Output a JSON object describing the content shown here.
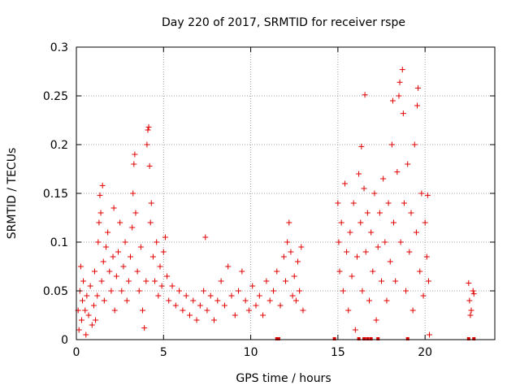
{
  "chart_data": {
    "type": "scatter",
    "title": "Day 220 of 2017, SRMTID for receiver rspe",
    "xlabel": "GPS time / hours",
    "ylabel": "SRMTID / TECUs",
    "xlim": [
      0,
      24
    ],
    "ylim": [
      0,
      0.3
    ],
    "x_ticks": [
      0,
      5,
      10,
      15,
      20
    ],
    "y_ticks": [
      0,
      0.05,
      0.1,
      0.15,
      0.2,
      0.25,
      0.3
    ],
    "x_tick_labels": [
      "0",
      "5",
      "10",
      "15",
      "20"
    ],
    "y_tick_labels": [
      "0",
      "0.05",
      "0.1",
      "0.15",
      "0.2",
      "0.25",
      "0.3"
    ],
    "grid": true,
    "marker": "+",
    "color": "#e00000",
    "series": [
      {
        "name": "SRMTID",
        "note": "Dense point cloud between 0–13 h and 15–20.3 h; scattered points near 22.5–22.8 h. Representative subset of points read from the figure.",
        "points": [
          [
            0.1,
            0.03
          ],
          [
            0.15,
            0.01
          ],
          [
            0.2,
            0.05
          ],
          [
            0.25,
            0.075
          ],
          [
            0.3,
            0.02
          ],
          [
            0.35,
            0.04
          ],
          [
            0.4,
            0.06
          ],
          [
            0.5,
            0.03
          ],
          [
            0.55,
            0.005
          ],
          [
            0.6,
            0.045
          ],
          [
            0.7,
            0.025
          ],
          [
            0.8,
            0.055
          ],
          [
            0.9,
            0.015
          ],
          [
            1.0,
            0.035
          ],
          [
            1.05,
            0.07
          ],
          [
            1.1,
            0.02
          ],
          [
            1.2,
            0.045
          ],
          [
            1.25,
            0.1
          ],
          [
            1.3,
            0.12
          ],
          [
            1.35,
            0.148
          ],
          [
            1.4,
            0.13
          ],
          [
            1.45,
            0.06
          ],
          [
            1.5,
            0.158
          ],
          [
            1.55,
            0.08
          ],
          [
            1.6,
            0.04
          ],
          [
            1.7,
            0.095
          ],
          [
            1.8,
            0.11
          ],
          [
            1.9,
            0.07
          ],
          [
            2.0,
            0.05
          ],
          [
            2.1,
            0.085
          ],
          [
            2.15,
            0.135
          ],
          [
            2.2,
            0.03
          ],
          [
            2.3,
            0.065
          ],
          [
            2.4,
            0.09
          ],
          [
            2.5,
            0.12
          ],
          [
            2.6,
            0.05
          ],
          [
            2.7,
            0.075
          ],
          [
            2.8,
            0.1
          ],
          [
            2.9,
            0.04
          ],
          [
            3.0,
            0.06
          ],
          [
            3.1,
            0.085
          ],
          [
            3.2,
            0.115
          ],
          [
            3.25,
            0.15
          ],
          [
            3.3,
            0.18
          ],
          [
            3.35,
            0.19
          ],
          [
            3.4,
            0.13
          ],
          [
            3.5,
            0.07
          ],
          [
            3.6,
            0.05
          ],
          [
            3.7,
            0.095
          ],
          [
            3.8,
            0.03
          ],
          [
            3.9,
            0.012
          ],
          [
            4.0,
            0.06
          ],
          [
            4.05,
            0.2
          ],
          [
            4.1,
            0.215
          ],
          [
            4.15,
            0.218
          ],
          [
            4.2,
            0.178
          ],
          [
            4.25,
            0.12
          ],
          [
            4.3,
            0.14
          ],
          [
            4.4,
            0.085
          ],
          [
            4.5,
            0.06
          ],
          [
            4.6,
            0.1
          ],
          [
            4.7,
            0.045
          ],
          [
            4.8,
            0.075
          ],
          [
            4.9,
            0.055
          ],
          [
            5.0,
            0.09
          ],
          [
            5.1,
            0.105
          ],
          [
            5.2,
            0.065
          ],
          [
            5.3,
            0.04
          ],
          [
            5.5,
            0.055
          ],
          [
            5.7,
            0.035
          ],
          [
            5.9,
            0.05
          ],
          [
            6.1,
            0.03
          ],
          [
            6.3,
            0.045
          ],
          [
            6.5,
            0.025
          ],
          [
            6.7,
            0.04
          ],
          [
            6.9,
            0.02
          ],
          [
            7.1,
            0.035
          ],
          [
            7.3,
            0.05
          ],
          [
            7.4,
            0.105
          ],
          [
            7.5,
            0.03
          ],
          [
            7.7,
            0.045
          ],
          [
            7.9,
            0.02
          ],
          [
            8.1,
            0.04
          ],
          [
            8.3,
            0.06
          ],
          [
            8.5,
            0.035
          ],
          [
            8.7,
            0.075
          ],
          [
            8.9,
            0.045
          ],
          [
            9.1,
            0.025
          ],
          [
            9.3,
            0.05
          ],
          [
            9.5,
            0.07
          ],
          [
            9.7,
            0.04
          ],
          [
            9.9,
            0.03
          ],
          [
            10.1,
            0.055
          ],
          [
            10.3,
            0.035
          ],
          [
            10.5,
            0.045
          ],
          [
            10.7,
            0.025
          ],
          [
            10.9,
            0.06
          ],
          [
            11.1,
            0.04
          ],
          [
            11.3,
            0.05
          ],
          [
            11.5,
            0.07
          ],
          [
            11.7,
            0.035
          ],
          [
            11.9,
            0.085
          ],
          [
            12.0,
            0.06
          ],
          [
            12.1,
            0.1
          ],
          [
            12.2,
            0.12
          ],
          [
            12.3,
            0.09
          ],
          [
            12.4,
            0.045
          ],
          [
            12.5,
            0.065
          ],
          [
            12.6,
            0.04
          ],
          [
            12.7,
            0.08
          ],
          [
            12.8,
            0.05
          ],
          [
            12.9,
            0.095
          ],
          [
            13.0,
            0.03
          ],
          [
            15.0,
            0.14
          ],
          [
            15.05,
            0.1
          ],
          [
            15.1,
            0.07
          ],
          [
            15.2,
            0.12
          ],
          [
            15.3,
            0.05
          ],
          [
            15.4,
            0.16
          ],
          [
            15.5,
            0.09
          ],
          [
            15.6,
            0.03
          ],
          [
            15.7,
            0.11
          ],
          [
            15.8,
            0.065
          ],
          [
            15.9,
            0.14
          ],
          [
            16.0,
            0.01
          ],
          [
            16.1,
            0.085
          ],
          [
            16.2,
            0.17
          ],
          [
            16.3,
            0.12
          ],
          [
            16.35,
            0.198
          ],
          [
            16.4,
            0.05
          ],
          [
            16.5,
            0.155
          ],
          [
            16.55,
            0.251
          ],
          [
            16.6,
            0.09
          ],
          [
            16.7,
            0.13
          ],
          [
            16.8,
            0.04
          ],
          [
            16.9,
            0.11
          ],
          [
            17.0,
            0.07
          ],
          [
            17.1,
            0.15
          ],
          [
            17.2,
            0.02
          ],
          [
            17.3,
            0.095
          ],
          [
            17.4,
            0.13
          ],
          [
            17.5,
            0.06
          ],
          [
            17.6,
            0.165
          ],
          [
            17.7,
            0.1
          ],
          [
            17.8,
            0.04
          ],
          [
            17.9,
            0.14
          ],
          [
            18.0,
            0.08
          ],
          [
            18.1,
            0.2
          ],
          [
            18.15,
            0.245
          ],
          [
            18.2,
            0.12
          ],
          [
            18.3,
            0.06
          ],
          [
            18.4,
            0.172
          ],
          [
            18.5,
            0.25
          ],
          [
            18.55,
            0.264
          ],
          [
            18.6,
            0.1
          ],
          [
            18.7,
            0.277
          ],
          [
            18.75,
            0.232
          ],
          [
            18.8,
            0.14
          ],
          [
            18.9,
            0.05
          ],
          [
            19.0,
            0.18
          ],
          [
            19.1,
            0.09
          ],
          [
            19.2,
            0.13
          ],
          [
            19.3,
            0.03
          ],
          [
            19.4,
            0.2
          ],
          [
            19.5,
            0.11
          ],
          [
            19.55,
            0.24
          ],
          [
            19.6,
            0.258
          ],
          [
            19.7,
            0.07
          ],
          [
            19.8,
            0.15
          ],
          [
            19.9,
            0.045
          ],
          [
            20.0,
            0.12
          ],
          [
            20.1,
            0.085
          ],
          [
            20.15,
            0.148
          ],
          [
            20.2,
            0.06
          ],
          [
            20.25,
            0.005
          ],
          [
            22.5,
            0.058
          ],
          [
            22.55,
            0.04
          ],
          [
            22.6,
            0.025
          ],
          [
            22.65,
            0.03
          ],
          [
            22.8,
            0.047
          ],
          [
            22.75,
            0.05
          ]
        ]
      }
    ],
    "zero_markers_x": [
      11.5,
      11.6,
      14.8,
      16.2,
      16.5,
      16.7,
      16.9,
      17.3,
      19.0,
      22.5,
      22.8
    ]
  }
}
